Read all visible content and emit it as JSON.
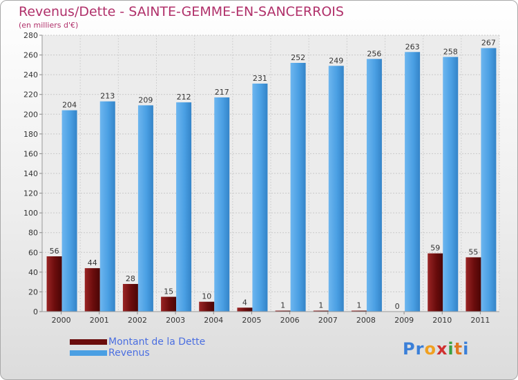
{
  "title": "Revenus/Dette - SAINTE-GEMME-EN-SANCERROIS",
  "subtitle": "(en milliers d'€)",
  "logo": {
    "text": "Proxiti",
    "colors": [
      "#3a7fd8",
      "#3a7fd8",
      "#f0a020",
      "#d03030",
      "#3aa040",
      "#e07820",
      "#3a7fd8"
    ]
  },
  "chart_data": {
    "type": "bar",
    "title": "Revenus/Dette - SAINTE-GEMME-EN-SANCERROIS",
    "ylabel": "(en milliers d'€)",
    "xlabel": "",
    "categories": [
      "2000",
      "2001",
      "2002",
      "2003",
      "2004",
      "2005",
      "2006",
      "2007",
      "2008",
      "2009",
      "2010",
      "2011"
    ],
    "ylim": [
      0,
      280
    ],
    "yticks": [
      0,
      20,
      40,
      60,
      80,
      100,
      120,
      140,
      160,
      180,
      200,
      220,
      240,
      260,
      280
    ],
    "grid": true,
    "legend_position": "bottom-left",
    "series": [
      {
        "name": "Montant de la Dette",
        "color": "#7a1010",
        "values": [
          56,
          44,
          28,
          15,
          10,
          4,
          1,
          1,
          1,
          0,
          59,
          55
        ]
      },
      {
        "name": "Revenus",
        "color": "#4fa3e6",
        "values": [
          204,
          213,
          209,
          212,
          217,
          231,
          252,
          249,
          256,
          263,
          258,
          267
        ]
      }
    ]
  }
}
